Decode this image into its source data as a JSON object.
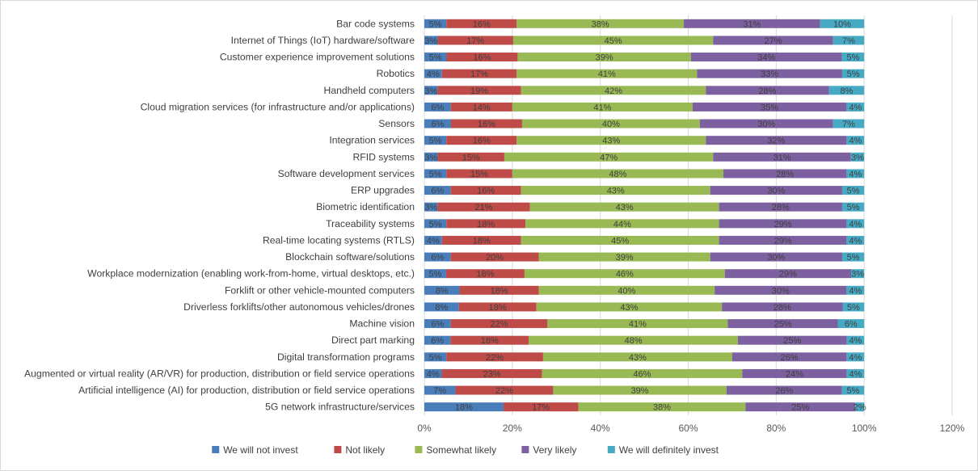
{
  "chart_data": {
    "type": "bar",
    "orientation": "horizontal",
    "stacked": "percent",
    "title": "",
    "xlabel": "",
    "ylabel": "",
    "xlim": [
      0,
      120
    ],
    "x_ticks": [
      "0%",
      "20%",
      "40%",
      "60%",
      "80%",
      "100%",
      "120%"
    ],
    "grid": "vertical",
    "legend_position": "bottom",
    "categories": [
      "Bar code systems",
      "Internet of Things (IoT) hardware/software",
      "Customer experience improvement solutions",
      "Robotics",
      "Handheld computers",
      "Cloud migration services (for infrastructure and/or applications)",
      "Sensors",
      "Integration services",
      "RFID systems",
      "Software development services",
      "ERP upgrades",
      "Biometric identification",
      "Traceability systems",
      "Real-time locating systems (RTLS)",
      "Blockchain software/solutions",
      "Workplace modernization (enabling work-from-home, virtual desktops, etc.)",
      "Forklift or other vehicle-mounted computers",
      "Driverless forklifts/other autonomous vehicles/drones",
      "Machine vision",
      "Direct part marking",
      "Digital transformation programs",
      "Augmented or virtual reality (AR/VR) for production, distribution or field service operations",
      "Artificial intelligence (AI) for production, distribution or field service operations",
      "5G network infrastructure/services"
    ],
    "series": [
      {
        "name": "We will not invest",
        "color": "#4a7ebb",
        "values": [
          5,
          3,
          5,
          4,
          3,
          6,
          6,
          5,
          3,
          5,
          6,
          3,
          5,
          4,
          6,
          5,
          8,
          8,
          6,
          6,
          5,
          4,
          7,
          18
        ]
      },
      {
        "name": "Not likely",
        "color": "#be4b48",
        "values": [
          16,
          17,
          16,
          17,
          19,
          14,
          16,
          16,
          15,
          15,
          16,
          21,
          18,
          18,
          20,
          18,
          18,
          18,
          22,
          18,
          22,
          23,
          22,
          17
        ]
      },
      {
        "name": "Somewhat likely",
        "color": "#98b954",
        "values": [
          38,
          45,
          39,
          41,
          42,
          41,
          40,
          43,
          47,
          48,
          43,
          43,
          44,
          45,
          39,
          46,
          40,
          43,
          41,
          48,
          43,
          46,
          39,
          38
        ]
      },
      {
        "name": "Very likely",
        "color": "#7d60a0",
        "values": [
          31,
          27,
          34,
          33,
          28,
          35,
          30,
          32,
          31,
          28,
          30,
          28,
          29,
          29,
          30,
          29,
          30,
          28,
          25,
          25,
          26,
          24,
          26,
          25
        ]
      },
      {
        "name": "We will definitely invest",
        "color": "#46aac5",
        "values": [
          10,
          7,
          5,
          5,
          8,
          4,
          7,
          4,
          3,
          4,
          5,
          5,
          4,
          4,
          5,
          3,
          4,
          5,
          6,
          4,
          4,
          4,
          5,
          2
        ]
      }
    ]
  },
  "colors": {
    "gridline": "#d9d9d9",
    "axis_text": "#595959",
    "label_text": "#404040"
  }
}
